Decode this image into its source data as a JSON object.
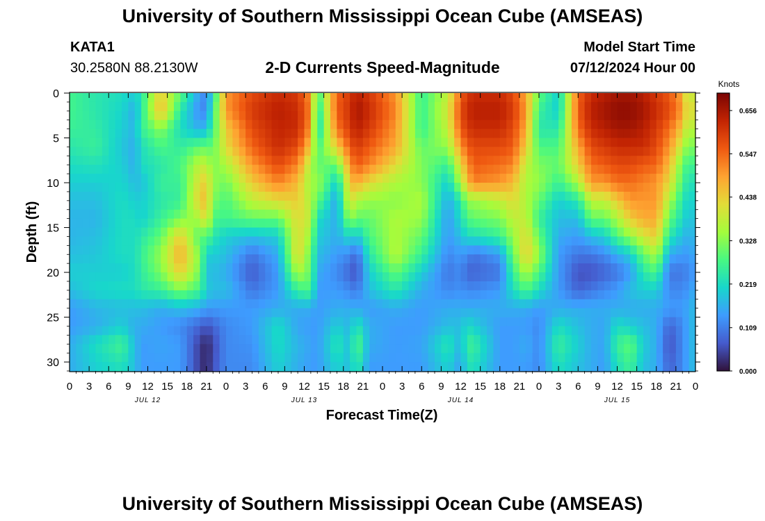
{
  "header": {
    "title": "University of Southern Mississippi Ocean Cube (AMSEAS)",
    "station": "KATA1",
    "coords": "30.2580N  88.2130W",
    "plot_title": "2-D Currents Speed-Magnitude",
    "model_label": "Model Start Time",
    "model_time": "07/12/2024 Hour 00"
  },
  "footer": {
    "title": "University of Southern Mississippi Ocean Cube (AMSEAS)"
  },
  "chart_data": {
    "type": "heatmap",
    "title": "2-D Currents Speed-Magnitude",
    "xlabel": "Forecast Time(Z)",
    "ylabel": "Depth (ft)",
    "x_ticks": [
      "0",
      "3",
      "6",
      "9",
      "12",
      "15",
      "18",
      "21",
      "0",
      "3",
      "6",
      "9",
      "12",
      "15",
      "18",
      "21",
      "0",
      "3",
      "6",
      "9",
      "12",
      "15",
      "18",
      "21",
      "0",
      "3",
      "6",
      "9",
      "12",
      "15",
      "18",
      "21",
      "0"
    ],
    "x_range_hours": [
      0,
      96
    ],
    "day_labels": [
      "JUL 12",
      "JUL 13",
      "JUL 14",
      "JUL 15"
    ],
    "y_ticks": [
      0,
      5,
      10,
      15,
      20,
      25,
      30
    ],
    "y_range_ft": [
      0,
      31
    ],
    "colorbar": {
      "label": "Knots",
      "ticks": [
        "0.656",
        "0.547",
        "0.438",
        "0.328",
        "0.219",
        "0.109",
        "0.000"
      ],
      "min": 0.0,
      "max": 0.7
    },
    "depth_nodes_ft": [
      0,
      2,
      4,
      6,
      8,
      10,
      12,
      14,
      16,
      18,
      20,
      22,
      24,
      26,
      28,
      31
    ],
    "time_nodes_h": [
      0,
      4,
      8,
      10,
      11,
      14,
      17,
      20,
      21,
      22,
      24,
      28,
      32,
      35,
      37,
      38,
      41,
      43,
      44,
      46,
      50,
      54,
      58,
      60,
      61,
      62,
      66,
      68,
      70,
      72,
      75,
      78,
      80,
      82,
      84,
      86,
      88,
      90,
      92,
      94,
      95,
      96
    ],
    "speed_columns_knots": [
      [
        0.27,
        0.27,
        0.26,
        0.24,
        0.22,
        0.2,
        0.18,
        0.17,
        0.17,
        0.18,
        0.2,
        0.18,
        0.14,
        0.14,
        0.16,
        0.16
      ],
      [
        0.24,
        0.24,
        0.25,
        0.26,
        0.23,
        0.2,
        0.18,
        0.17,
        0.18,
        0.19,
        0.2,
        0.21,
        0.17,
        0.16,
        0.22,
        0.2
      ],
      [
        0.22,
        0.21,
        0.2,
        0.19,
        0.2,
        0.21,
        0.22,
        0.22,
        0.22,
        0.22,
        0.2,
        0.22,
        0.18,
        0.2,
        0.27,
        0.22
      ],
      [
        0.2,
        0.16,
        0.17,
        0.16,
        0.16,
        0.18,
        0.2,
        0.22,
        0.22,
        0.22,
        0.22,
        0.22,
        0.18,
        0.16,
        0.18,
        0.18
      ],
      [
        0.24,
        0.24,
        0.26,
        0.22,
        0.22,
        0.18,
        0.2,
        0.2,
        0.24,
        0.26,
        0.25,
        0.24,
        0.18,
        0.16,
        0.14,
        0.14
      ],
      [
        0.44,
        0.47,
        0.33,
        0.28,
        0.24,
        0.26,
        0.24,
        0.26,
        0.3,
        0.34,
        0.32,
        0.26,
        0.16,
        0.14,
        0.15,
        0.14
      ],
      [
        0.3,
        0.24,
        0.22,
        0.25,
        0.28,
        0.26,
        0.26,
        0.32,
        0.44,
        0.48,
        0.44,
        0.32,
        0.18,
        0.12,
        0.14,
        0.14
      ],
      [
        0.14,
        0.12,
        0.16,
        0.3,
        0.38,
        0.42,
        0.44,
        0.36,
        0.28,
        0.32,
        0.31,
        0.27,
        0.16,
        0.08,
        0.04,
        0.04
      ],
      [
        0.12,
        0.12,
        0.18,
        0.3,
        0.38,
        0.44,
        0.46,
        0.44,
        0.3,
        0.2,
        0.18,
        0.2,
        0.14,
        0.06,
        0.02,
        0.02
      ],
      [
        0.22,
        0.26,
        0.27,
        0.3,
        0.32,
        0.34,
        0.32,
        0.28,
        0.24,
        0.2,
        0.18,
        0.18,
        0.14,
        0.08,
        0.05,
        0.06
      ],
      [
        0.5,
        0.5,
        0.44,
        0.42,
        0.36,
        0.31,
        0.28,
        0.27,
        0.2,
        0.18,
        0.16,
        0.18,
        0.14,
        0.12,
        0.12,
        0.12
      ],
      [
        0.58,
        0.6,
        0.58,
        0.55,
        0.5,
        0.44,
        0.38,
        0.3,
        0.18,
        0.1,
        0.07,
        0.1,
        0.14,
        0.14,
        0.13,
        0.12
      ],
      [
        0.62,
        0.64,
        0.63,
        0.62,
        0.58,
        0.52,
        0.42,
        0.3,
        0.2,
        0.16,
        0.14,
        0.14,
        0.16,
        0.22,
        0.22,
        0.2
      ],
      [
        0.6,
        0.62,
        0.62,
        0.58,
        0.52,
        0.46,
        0.44,
        0.42,
        0.42,
        0.43,
        0.36,
        0.26,
        0.16,
        0.15,
        0.17,
        0.16
      ],
      [
        0.5,
        0.52,
        0.5,
        0.44,
        0.36,
        0.34,
        0.36,
        0.38,
        0.34,
        0.3,
        0.3,
        0.28,
        0.16,
        0.14,
        0.15,
        0.14
      ],
      [
        0.26,
        0.22,
        0.2,
        0.27,
        0.3,
        0.35,
        0.3,
        0.22,
        0.2,
        0.18,
        0.16,
        0.14,
        0.14,
        0.14,
        0.14,
        0.14
      ],
      [
        0.55,
        0.56,
        0.53,
        0.44,
        0.3,
        0.2,
        0.15,
        0.16,
        0.16,
        0.14,
        0.12,
        0.14,
        0.16,
        0.2,
        0.24,
        0.2
      ],
      [
        0.6,
        0.61,
        0.6,
        0.56,
        0.5,
        0.45,
        0.42,
        0.34,
        0.22,
        0.12,
        0.08,
        0.12,
        0.16,
        0.17,
        0.18,
        0.18
      ],
      [
        0.64,
        0.66,
        0.64,
        0.6,
        0.56,
        0.48,
        0.36,
        0.3,
        0.18,
        0.08,
        0.06,
        0.1,
        0.16,
        0.24,
        0.3,
        0.24
      ],
      [
        0.6,
        0.62,
        0.6,
        0.56,
        0.52,
        0.42,
        0.34,
        0.3,
        0.28,
        0.24,
        0.2,
        0.18,
        0.14,
        0.16,
        0.16,
        0.14
      ],
      [
        0.5,
        0.52,
        0.5,
        0.48,
        0.42,
        0.36,
        0.33,
        0.36,
        0.36,
        0.37,
        0.3,
        0.24,
        0.16,
        0.14,
        0.14,
        0.14
      ],
      [
        0.26,
        0.26,
        0.26,
        0.3,
        0.32,
        0.33,
        0.36,
        0.34,
        0.3,
        0.26,
        0.2,
        0.16,
        0.14,
        0.14,
        0.15,
        0.14
      ],
      [
        0.38,
        0.4,
        0.38,
        0.34,
        0.26,
        0.2,
        0.16,
        0.14,
        0.14,
        0.12,
        0.1,
        0.12,
        0.16,
        0.18,
        0.24,
        0.2
      ],
      [
        0.55,
        0.58,
        0.56,
        0.5,
        0.42,
        0.36,
        0.24,
        0.22,
        0.18,
        0.14,
        0.12,
        0.13,
        0.16,
        0.18,
        0.17,
        0.14
      ],
      [
        0.6,
        0.62,
        0.6,
        0.56,
        0.5,
        0.46,
        0.34,
        0.28,
        0.22,
        0.12,
        0.08,
        0.12,
        0.16,
        0.22,
        0.26,
        0.22
      ],
      [
        0.62,
        0.64,
        0.62,
        0.58,
        0.56,
        0.52,
        0.34,
        0.3,
        0.22,
        0.1,
        0.08,
        0.12,
        0.16,
        0.2,
        0.26,
        0.22
      ],
      [
        0.62,
        0.64,
        0.62,
        0.58,
        0.54,
        0.5,
        0.38,
        0.32,
        0.26,
        0.14,
        0.1,
        0.14,
        0.16,
        0.14,
        0.14,
        0.14
      ],
      [
        0.58,
        0.6,
        0.58,
        0.56,
        0.52,
        0.46,
        0.42,
        0.38,
        0.34,
        0.3,
        0.26,
        0.22,
        0.16,
        0.14,
        0.14,
        0.14
      ],
      [
        0.48,
        0.5,
        0.48,
        0.44,
        0.38,
        0.36,
        0.36,
        0.38,
        0.42,
        0.44,
        0.36,
        0.28,
        0.16,
        0.14,
        0.16,
        0.14
      ],
      [
        0.3,
        0.26,
        0.24,
        0.28,
        0.32,
        0.34,
        0.3,
        0.26,
        0.3,
        0.34,
        0.28,
        0.22,
        0.14,
        0.12,
        0.12,
        0.12
      ],
      [
        0.2,
        0.2,
        0.24,
        0.28,
        0.3,
        0.26,
        0.2,
        0.18,
        0.16,
        0.14,
        0.14,
        0.14,
        0.16,
        0.22,
        0.26,
        0.22
      ],
      [
        0.55,
        0.56,
        0.54,
        0.48,
        0.44,
        0.36,
        0.24,
        0.18,
        0.14,
        0.1,
        0.06,
        0.08,
        0.16,
        0.18,
        0.2,
        0.18
      ],
      [
        0.62,
        0.64,
        0.62,
        0.58,
        0.54,
        0.5,
        0.38,
        0.3,
        0.18,
        0.1,
        0.06,
        0.1,
        0.16,
        0.16,
        0.16,
        0.16
      ],
      [
        0.64,
        0.66,
        0.64,
        0.6,
        0.56,
        0.5,
        0.38,
        0.3,
        0.2,
        0.12,
        0.08,
        0.12,
        0.16,
        0.15,
        0.15,
        0.14
      ],
      [
        0.66,
        0.68,
        0.66,
        0.62,
        0.58,
        0.54,
        0.44,
        0.36,
        0.28,
        0.16,
        0.1,
        0.14,
        0.16,
        0.22,
        0.26,
        0.22
      ],
      [
        0.66,
        0.68,
        0.66,
        0.62,
        0.58,
        0.54,
        0.5,
        0.44,
        0.34,
        0.2,
        0.14,
        0.18,
        0.16,
        0.2,
        0.3,
        0.26
      ],
      [
        0.64,
        0.66,
        0.64,
        0.62,
        0.56,
        0.52,
        0.5,
        0.48,
        0.4,
        0.3,
        0.24,
        0.2,
        0.16,
        0.18,
        0.2,
        0.18
      ],
      [
        0.6,
        0.62,
        0.6,
        0.58,
        0.55,
        0.5,
        0.5,
        0.48,
        0.44,
        0.36,
        0.28,
        0.2,
        0.16,
        0.16,
        0.16,
        0.16
      ],
      [
        0.56,
        0.58,
        0.54,
        0.5,
        0.46,
        0.42,
        0.36,
        0.3,
        0.24,
        0.16,
        0.1,
        0.12,
        0.14,
        0.08,
        0.06,
        0.08
      ],
      [
        0.48,
        0.5,
        0.44,
        0.38,
        0.3,
        0.28,
        0.24,
        0.22,
        0.18,
        0.14,
        0.1,
        0.12,
        0.14,
        0.12,
        0.12,
        0.12
      ],
      [
        0.34,
        0.38,
        0.34,
        0.3,
        0.26,
        0.22,
        0.2,
        0.18,
        0.16,
        0.14,
        0.12,
        0.14,
        0.16,
        0.16,
        0.16,
        0.16
      ],
      [
        0.44,
        0.46,
        0.4,
        0.34,
        0.28,
        0.24,
        0.22,
        0.2,
        0.18,
        0.16,
        0.14,
        0.16,
        0.18,
        0.18,
        0.18,
        0.18
      ]
    ]
  }
}
